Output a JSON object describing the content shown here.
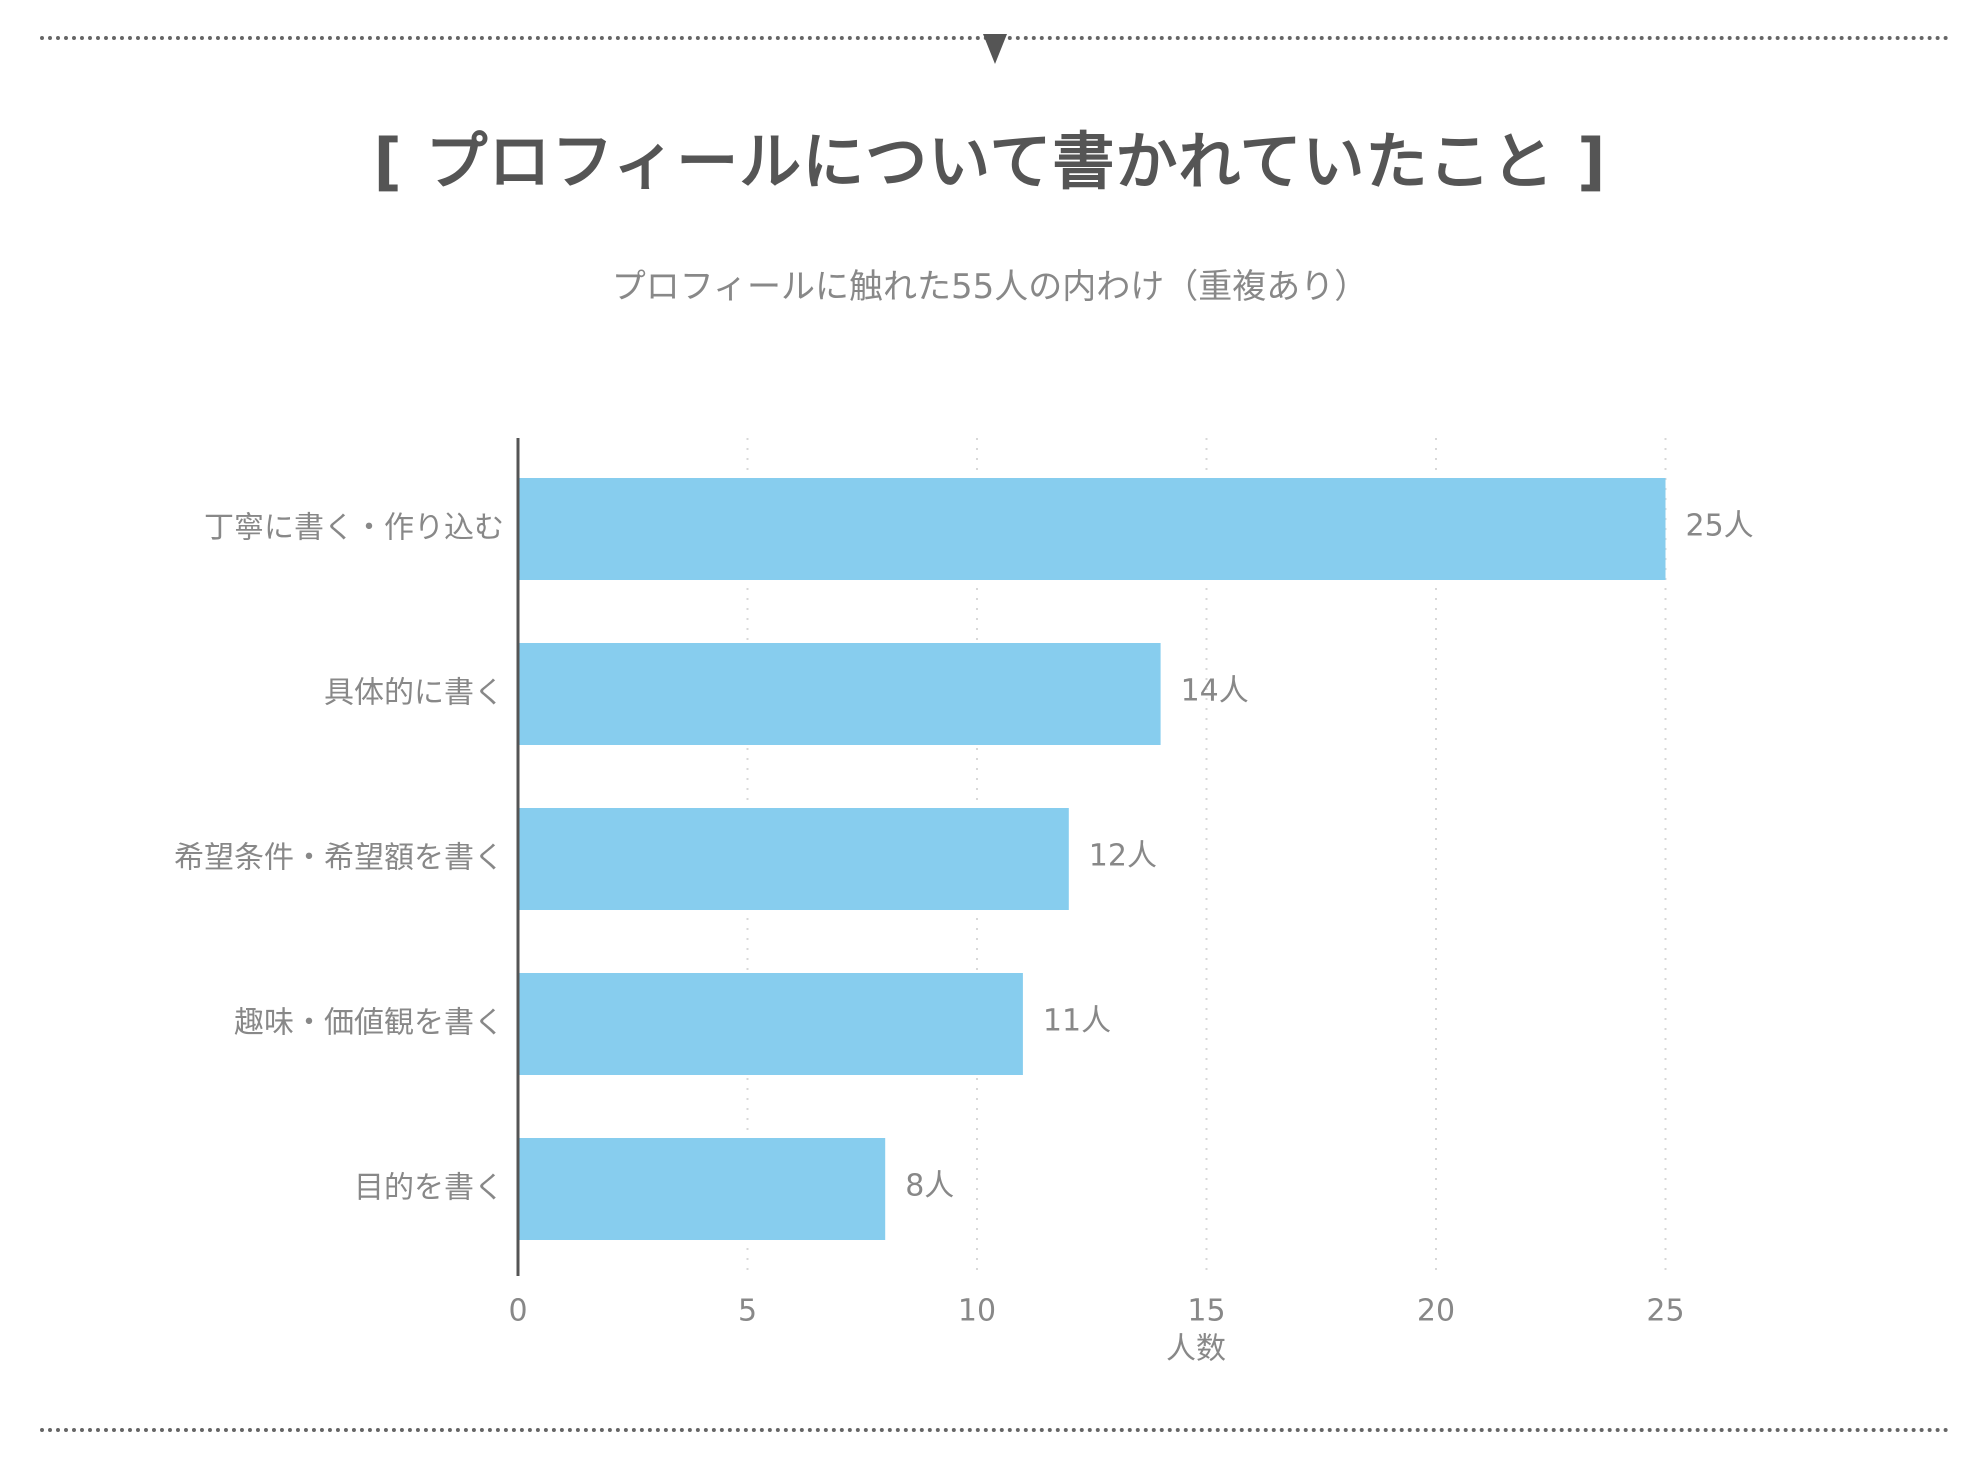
{
  "title": "[ プロフィールについて書かれていたこと ]",
  "subtitle": "プロフィールに触れた55人の内わけ（重複あり）",
  "colors": {
    "bar": "#87CDEE",
    "grid": "#d8d8d8",
    "axis": "#555555",
    "text": "#888888"
  },
  "chart_data": {
    "type": "bar",
    "orientation": "horizontal",
    "categories": [
      "丁寧に書く・作り込む",
      "具体的に書く",
      "希望条件・希望額を書く",
      "趣味・価値観を書く",
      "目的を書く"
    ],
    "values": [
      25,
      14,
      12,
      11,
      8
    ],
    "value_labels": [
      "25人",
      "14人",
      "12人",
      "11人",
      "8人"
    ],
    "xlabel": "人数",
    "ylabel": "",
    "xlim": [
      0,
      25
    ],
    "xticks": [
      0,
      5,
      10,
      15,
      20,
      25
    ],
    "grid": "vertical dotted"
  }
}
